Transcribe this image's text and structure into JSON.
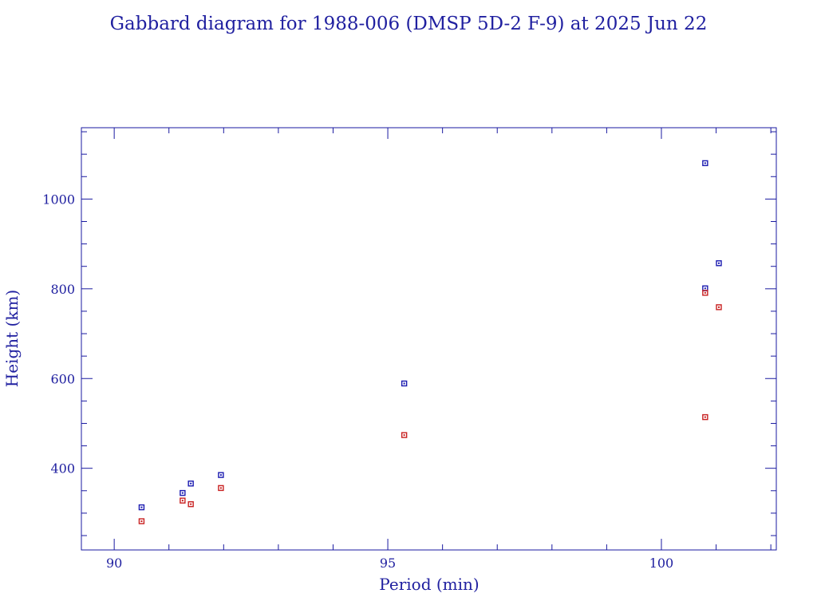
{
  "chart_data": {
    "type": "scatter",
    "title": "Gabbard diagram for 1988-006 (DMSP 5D-2 F-9) at 2025 Jun 22",
    "xlabel": "Period (min)",
    "ylabel": "Height (km)",
    "xlim": [
      89.4,
      102.1
    ],
    "ylim": [
      218,
      1159
    ],
    "x_ticks": [
      90,
      95,
      100
    ],
    "y_ticks": [
      400,
      600,
      800,
      1000
    ],
    "x_minor_step": 1,
    "y_minor_step": 50,
    "grid": false,
    "colors": {
      "axis": "#1a1aa0",
      "text": "#2020a0",
      "apogee": "#1a1ab0",
      "perigee": "#c82020"
    },
    "series": [
      {
        "key": "apogee",
        "x": [
          90.5,
          91.25,
          91.4,
          91.95,
          95.3,
          100.8,
          100.8,
          101.05
        ],
        "y": [
          313,
          345,
          366,
          385,
          589,
          1080,
          801,
          857
        ]
      },
      {
        "key": "perigee",
        "x": [
          90.5,
          91.25,
          91.4,
          91.95,
          95.3,
          100.8,
          100.8,
          101.05
        ],
        "y": [
          282,
          328,
          320,
          356,
          474,
          514,
          791,
          759
        ]
      }
    ]
  }
}
